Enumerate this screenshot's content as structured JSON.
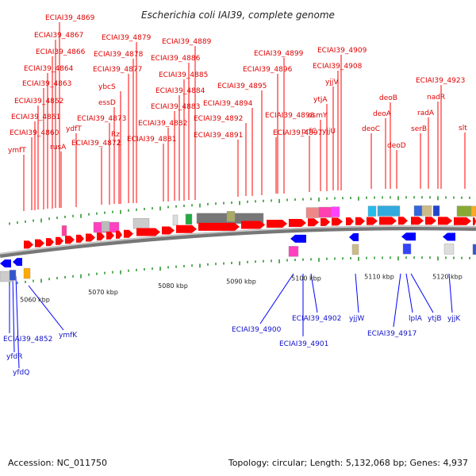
{
  "title": "Escherichia coli IAI39, complete genome",
  "footer": {
    "accession": "Accession: NC_011750",
    "summary": "Topology: circular; Length: 5,132,068 bp; Genes: 4,937"
  },
  "colors": {
    "forward": "#ff0000",
    "reverse": "#0000ff",
    "backbone": "#777777",
    "tick": "#118811"
  },
  "scale_labels": [
    "5060 kbp",
    "5070 kbp",
    "5080 kbp",
    "5090 kbp",
    "5100 kbp",
    "5110 kbp",
    "5120 kbp"
  ],
  "top_genes": [
    "ECIAI39_4869",
    "ECIAI39_4867",
    "ECIAI39_4866",
    "ECIAI39_4864",
    "ECIAI39_4863",
    "ECIAI39_4862",
    "ECIAI39_4861",
    "ECIAI39_4860",
    "ymfT",
    "rusA",
    "ydfT",
    "ECIAI39_4879",
    "ECIAI39_4878",
    "ECIAI39_4877",
    "ybcS",
    "essD",
    "ECIAI39_4873",
    "Rz",
    "ECIAI39_4872",
    "ECIAI39_4889",
    "ECIAI39_4886",
    "ECIAI39_4885",
    "ECIAI39_4884",
    "ECIAI39_4883",
    "ECIAI39_4882",
    "ECIAI39_4881",
    "ECIAI39_4899",
    "ECIAI39_4896",
    "ECIAI39_4895",
    "ECIAI39_4894",
    "ECIAI39_4892",
    "ECIAI39_4891",
    "ECIAI39_4898",
    "ECIAI39_4897",
    "ECIAI39_4909",
    "ECIAI39_4908",
    "yjjV",
    "ytjA",
    "osmY",
    "prfC",
    "yjjU",
    "deoB",
    "deoA",
    "deoC",
    "deoD",
    "ECIAI39_4923",
    "nadR",
    "radA",
    "serB",
    "slt"
  ],
  "bottom_genes": [
    "ECIAI39_4852",
    "yfdR",
    "yfdQ",
    "ymfK",
    "ECIAI39_4900",
    "ECIAI39_4902",
    "ECIAI39_4901",
    "yjjW",
    "ECIAI39_4917",
    "lplA",
    "ytjB",
    "yjjK"
  ]
}
